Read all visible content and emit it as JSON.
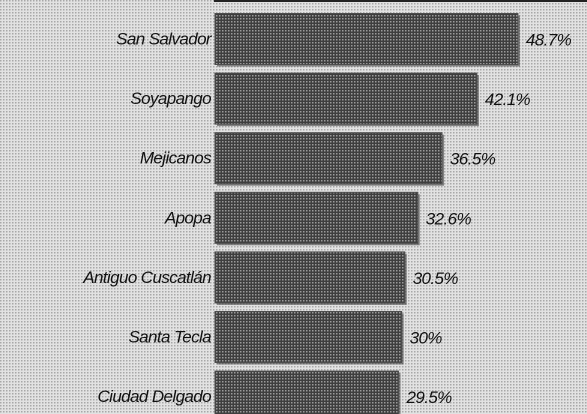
{
  "chart_data": {
    "type": "bar",
    "orientation": "horizontal",
    "categories": [
      "San Salvador",
      "Soyapango",
      "Mejicanos",
      "Apopa",
      "Antiguo Cuscatlán",
      "Santa Tecla",
      "Ciudad Delgado"
    ],
    "values": [
      48.7,
      42.1,
      36.5,
      32.6,
      30.5,
      30,
      29.5
    ],
    "value_labels": [
      "48.7%",
      "42.1%",
      "36.5%",
      "32.6%",
      "30.5%",
      "30%",
      "29.5%"
    ],
    "color": "#4e4e4e"
  }
}
